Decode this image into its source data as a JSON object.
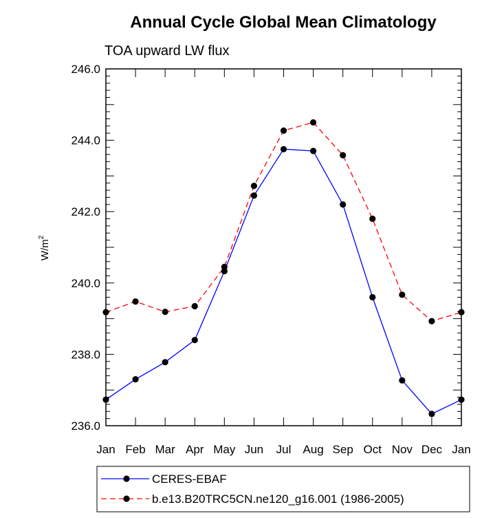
{
  "chart_data": {
    "type": "line",
    "title": "Annual Cycle Global Mean Climatology",
    "subtitle": "TOA upward LW flux",
    "xlabel": "",
    "ylabel": "W/m",
    "ylabel_superscript": "2",
    "ylim": [
      236.0,
      246.0
    ],
    "yticks": [
      "236.0",
      "238.0",
      "240.0",
      "242.0",
      "244.0",
      "246.0"
    ],
    "yticks_values": [
      236.0,
      238.0,
      240.0,
      242.0,
      244.0,
      246.0
    ],
    "categories": [
      "Jan",
      "Feb",
      "Mar",
      "Apr",
      "May",
      "Jun",
      "Jul",
      "Aug",
      "Sep",
      "Oct",
      "Nov",
      "Dec",
      "Jan"
    ],
    "series": [
      {
        "name": "CERES-EBAF",
        "color": "#0000ff",
        "dash": "solid",
        "values": [
          236.73,
          237.3,
          237.78,
          238.4,
          240.33,
          242.45,
          243.75,
          243.7,
          242.2,
          239.6,
          237.27,
          236.33,
          236.73
        ]
      },
      {
        "name": "b.e13.B20TRC5CN.ne120_g16.001 (1986-2005)",
        "color": "#ff0000",
        "dash": "dashed",
        "values": [
          239.18,
          239.48,
          239.19,
          239.35,
          240.45,
          242.72,
          244.27,
          244.5,
          243.58,
          241.8,
          239.67,
          238.93,
          239.18
        ]
      }
    ],
    "legend_position": "bottom",
    "grid": false
  }
}
